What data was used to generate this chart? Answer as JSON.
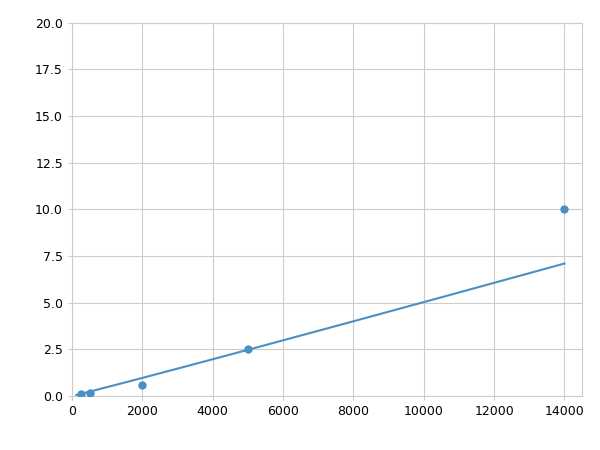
{
  "x": [
    125,
    250,
    500,
    2000,
    5000,
    14000
  ],
  "y": [
    0.08,
    0.12,
    0.18,
    0.6,
    2.5,
    10.0
  ],
  "line_color": "#4a90c4",
  "marker_color": "#4a90c4",
  "marker_size": 6,
  "xlim": [
    0,
    14500
  ],
  "ylim": [
    0,
    20
  ],
  "xticks": [
    0,
    2000,
    4000,
    6000,
    8000,
    10000,
    12000,
    14000
  ],
  "yticks": [
    0.0,
    2.5,
    5.0,
    7.5,
    10.0,
    12.5,
    15.0,
    17.5,
    20.0
  ],
  "grid_color": "#cccccc",
  "background_color": "#ffffff",
  "figsize": [
    6.0,
    4.5
  ],
  "dpi": 100
}
